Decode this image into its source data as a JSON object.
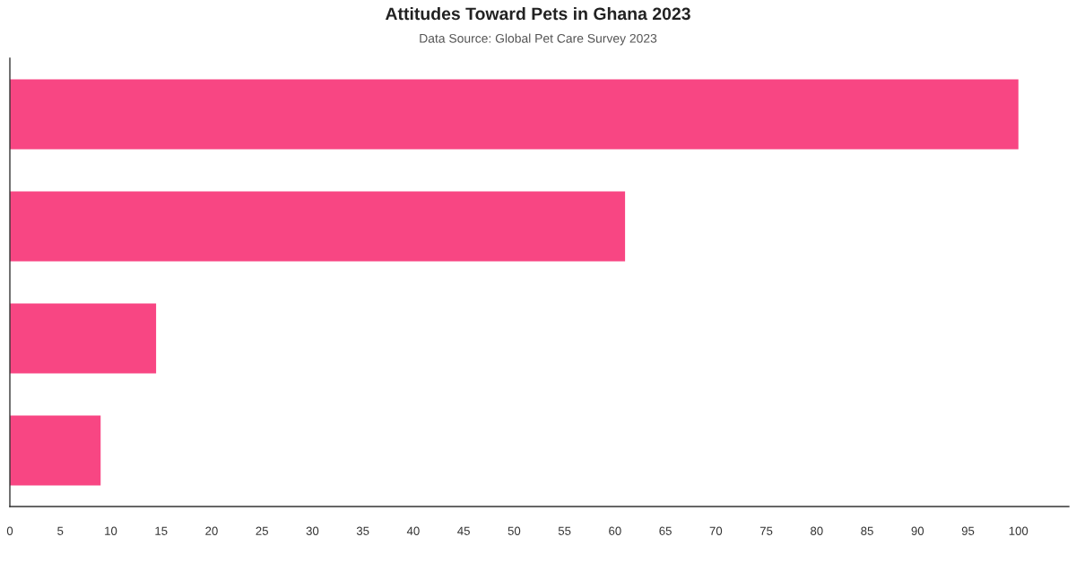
{
  "chart_data": {
    "type": "bar",
    "orientation": "horizontal",
    "title": "Attitudes Toward Pets in Ghana 2023",
    "subtitle": "Data Source: Global Pet Care Survey 2023",
    "categories": [
      null,
      null,
      null,
      null
    ],
    "values": [
      100,
      61,
      14.5,
      9
    ],
    "color": "#f84683",
    "xlim": [
      0,
      105
    ],
    "xticks": [
      0,
      5,
      10,
      15,
      20,
      25,
      30,
      35,
      40,
      45,
      50,
      55,
      60,
      65,
      70,
      75,
      80,
      85,
      90,
      95,
      100
    ],
    "grid": false,
    "tick_labels": "x"
  }
}
